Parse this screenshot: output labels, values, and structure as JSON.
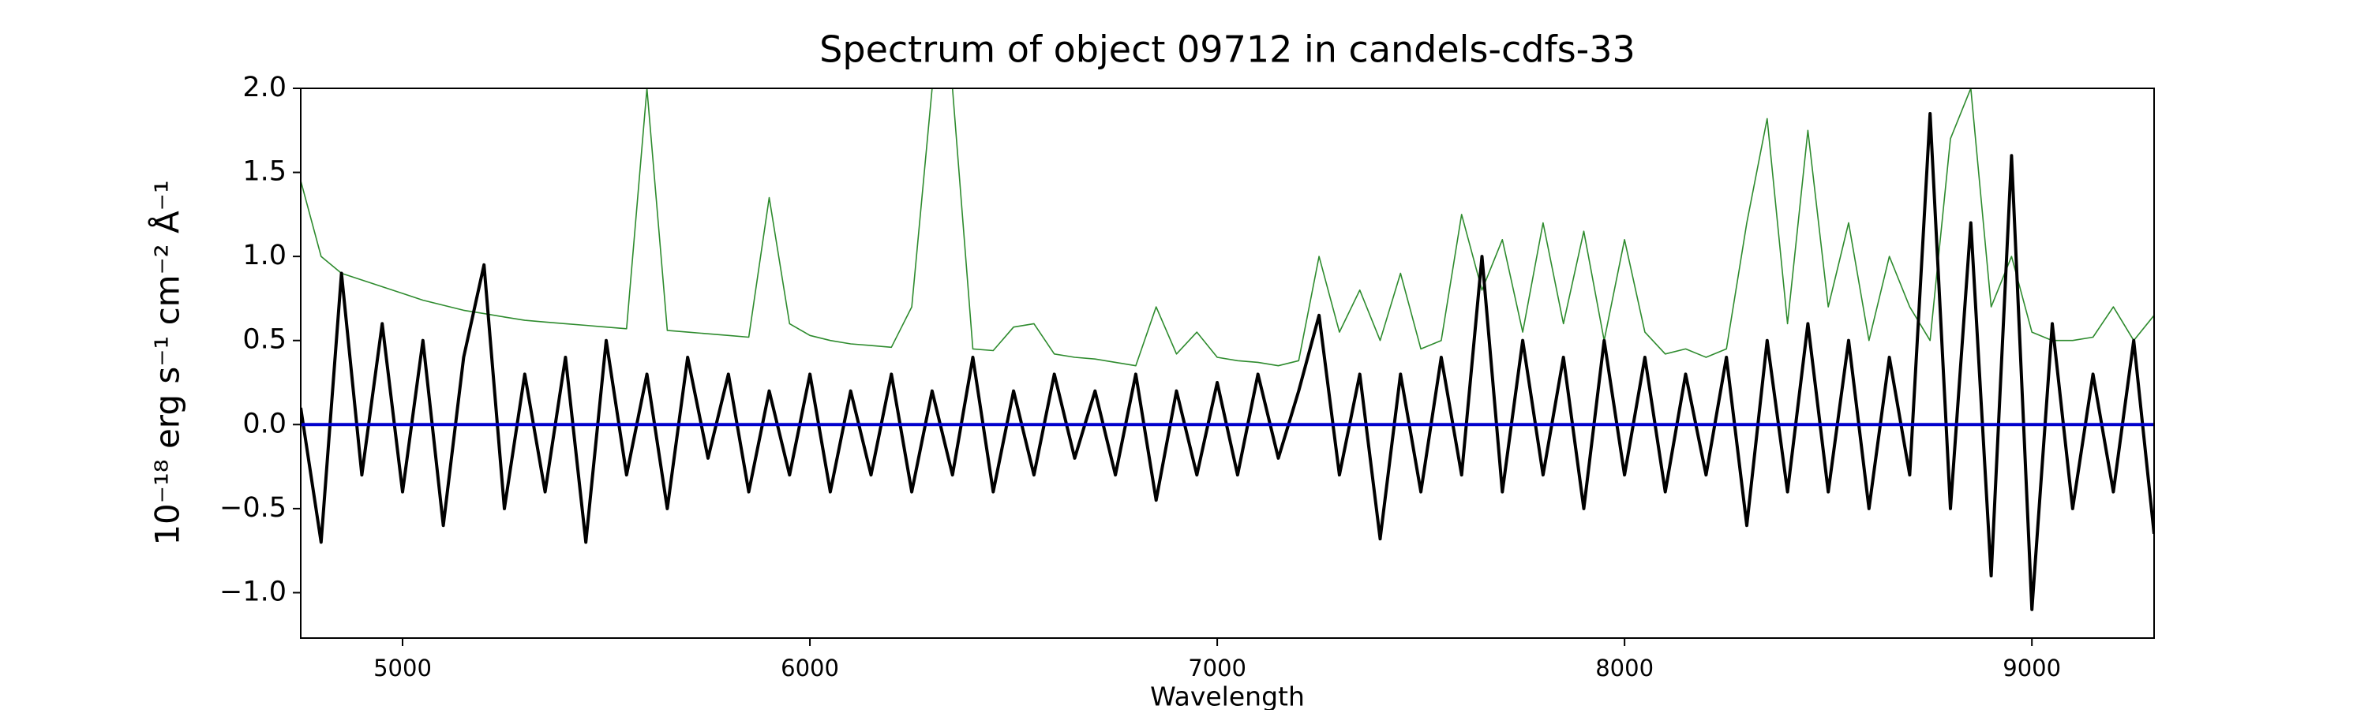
{
  "chart_data": {
    "type": "line",
    "title": "Spectrum of object 09712 in candels-cdfs-33",
    "xlabel": "Wavelength",
    "ylabel": "10⁻¹⁸ erg s⁻¹ cm⁻² Å⁻¹",
    "xlim": [
      4750,
      9300
    ],
    "ylim": [
      -1.27,
      2.0
    ],
    "xticks": [
      5000,
      6000,
      7000,
      8000,
      9000
    ],
    "yticks": [
      {
        "value": -1.0,
        "label": "−1.0"
      },
      {
        "value": -0.5,
        "label": "−0.5"
      },
      {
        "value": 0.0,
        "label": "0.0"
      },
      {
        "value": 0.5,
        "label": "0.5"
      },
      {
        "value": 1.0,
        "label": "1.0"
      },
      {
        "value": 1.5,
        "label": "1.5"
      },
      {
        "value": 2.0,
        "label": "2.0"
      }
    ],
    "grid": false,
    "x": [
      4750,
      4800,
      4850,
      4900,
      4950,
      5000,
      5050,
      5100,
      5150,
      5200,
      5250,
      5300,
      5350,
      5400,
      5450,
      5500,
      5550,
      5600,
      5650,
      5700,
      5750,
      5800,
      5850,
      5900,
      5950,
      6000,
      6050,
      6100,
      6150,
      6200,
      6250,
      6300,
      6350,
      6400,
      6450,
      6500,
      6550,
      6600,
      6650,
      6700,
      6750,
      6800,
      6850,
      6900,
      6950,
      7000,
      7050,
      7100,
      7150,
      7200,
      7250,
      7300,
      7350,
      7400,
      7450,
      7500,
      7550,
      7600,
      7650,
      7700,
      7750,
      7800,
      7850,
      7900,
      7950,
      8000,
      8050,
      8100,
      8150,
      8200,
      8250,
      8300,
      8350,
      8400,
      8450,
      8500,
      8550,
      8600,
      8650,
      8700,
      8750,
      8800,
      8850,
      8900,
      8950,
      9000,
      9050,
      9100,
      9150,
      9200,
      9250,
      9300
    ],
    "series": [
      {
        "color": "#2e8b2e",
        "width": 1.6,
        "values": [
          1.45,
          1.0,
          0.9,
          0.86,
          0.82,
          0.78,
          0.74,
          0.71,
          0.68,
          0.66,
          0.64,
          0.62,
          0.61,
          0.6,
          0.59,
          0.58,
          0.57,
          2.0,
          0.56,
          0.55,
          0.54,
          0.53,
          0.52,
          1.35,
          0.6,
          0.53,
          0.5,
          0.48,
          0.47,
          0.46,
          0.7,
          2.0,
          2.0,
          0.45,
          0.44,
          0.58,
          0.6,
          0.42,
          0.4,
          0.39,
          0.37,
          0.35,
          0.7,
          0.42,
          0.55,
          0.4,
          0.38,
          0.37,
          0.35,
          0.38,
          1.0,
          0.55,
          0.8,
          0.5,
          0.9,
          0.45,
          0.5,
          1.25,
          0.8,
          1.1,
          0.55,
          1.2,
          0.6,
          1.15,
          0.5,
          1.1,
          0.55,
          0.42,
          0.45,
          0.4,
          0.45,
          1.2,
          1.82,
          0.6,
          1.75,
          0.7,
          1.2,
          0.5,
          1.0,
          0.7,
          0.5,
          1.7,
          2.0,
          0.7,
          1.0,
          0.55,
          0.5,
          0.5,
          0.52,
          0.7,
          0.5,
          0.65
        ]
      },
      {
        "color": "#000000",
        "width": 4,
        "values": [
          0.1,
          -0.7,
          0.9,
          -0.3,
          0.6,
          -0.4,
          0.5,
          -0.6,
          0.4,
          0.95,
          -0.5,
          0.3,
          -0.4,
          0.4,
          -0.7,
          0.5,
          -0.3,
          0.3,
          -0.5,
          0.4,
          -0.2,
          0.3,
          -0.4,
          0.2,
          -0.3,
          0.3,
          -0.4,
          0.2,
          -0.3,
          0.3,
          -0.4,
          0.2,
          -0.3,
          0.4,
          -0.4,
          0.2,
          -0.3,
          0.3,
          -0.2,
          0.2,
          -0.3,
          0.3,
          -0.45,
          0.2,
          -0.3,
          0.25,
          -0.3,
          0.3,
          -0.2,
          0.2,
          0.65,
          -0.3,
          0.3,
          -0.68,
          0.3,
          -0.4,
          0.4,
          -0.3,
          1.0,
          -0.4,
          0.5,
          -0.3,
          0.4,
          -0.5,
          0.5,
          -0.3,
          0.4,
          -0.4,
          0.3,
          -0.3,
          0.4,
          -0.6,
          0.5,
          -0.4,
          0.6,
          -0.4,
          0.5,
          -0.5,
          0.4,
          -0.3,
          1.85,
          -0.5,
          1.2,
          -0.9,
          1.6,
          -1.1,
          0.6,
          -0.5,
          0.3,
          -0.4,
          0.5,
          -0.65
        ]
      },
      {
        "color": "#0000cc",
        "width": 4,
        "x": [
          4750,
          9300
        ],
        "values": [
          0,
          0
        ]
      }
    ]
  }
}
